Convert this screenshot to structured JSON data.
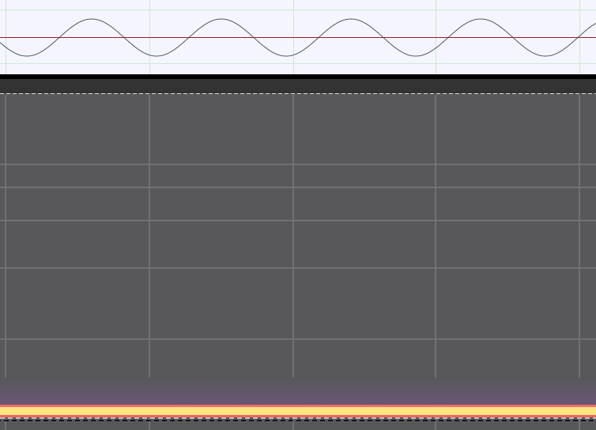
{
  "waveform_track": {
    "background_color": "#f4f5fe",
    "grid_color": "#cfe8d2",
    "waveform_color": "#3d4a52",
    "center_line_color": "#9a1c1c",
    "signal": "sine"
  },
  "spectrogram_track": {
    "background_color": "#58585a",
    "grid_color": "#717173",
    "band_colors": [
      "#6a5676",
      "#ef6f6f",
      "#ffe680",
      "#f06464"
    ]
  }
}
